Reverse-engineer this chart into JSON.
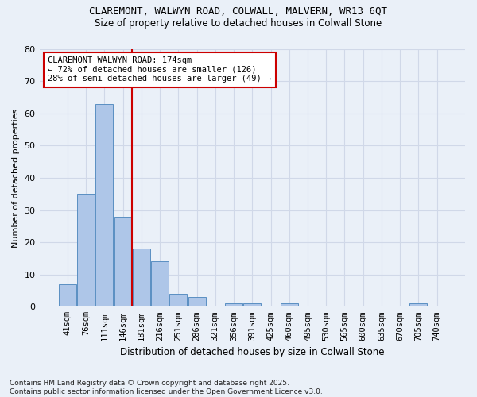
{
  "title_line1": "CLAREMONT, WALWYN ROAD, COLWALL, MALVERN, WR13 6QT",
  "title_line2": "Size of property relative to detached houses in Colwall Stone",
  "xlabel": "Distribution of detached houses by size in Colwall Stone",
  "ylabel": "Number of detached properties",
  "categories": [
    "41sqm",
    "76sqm",
    "111sqm",
    "146sqm",
    "181sqm",
    "216sqm",
    "251sqm",
    "286sqm",
    "321sqm",
    "356sqm",
    "391sqm",
    "425sqm",
    "460sqm",
    "495sqm",
    "530sqm",
    "565sqm",
    "600sqm",
    "635sqm",
    "670sqm",
    "705sqm",
    "740sqm"
  ],
  "values": [
    7,
    35,
    63,
    28,
    18,
    14,
    4,
    3,
    0,
    1,
    1,
    0,
    1,
    0,
    0,
    0,
    0,
    0,
    0,
    1,
    0
  ],
  "bar_color": "#aec6e8",
  "bar_edge_color": "#5a8fc2",
  "grid_color": "#d0d8e8",
  "background_color": "#eaf0f8",
  "vline_color": "#cc0000",
  "vline_x_index": 4,
  "annotation_text": "CLAREMONT WALWYN ROAD: 174sqm\n← 72% of detached houses are smaller (126)\n28% of semi-detached houses are larger (49) →",
  "annotation_box_facecolor": "#ffffff",
  "annotation_box_edgecolor": "#cc0000",
  "footnote": "Contains HM Land Registry data © Crown copyright and database right 2025.\nContains public sector information licensed under the Open Government Licence v3.0.",
  "ylim": [
    0,
    80
  ],
  "yticks": [
    0,
    10,
    20,
    30,
    40,
    50,
    60,
    70,
    80
  ],
  "title1_fontsize": 9,
  "title2_fontsize": 8.5,
  "xlabel_fontsize": 8.5,
  "ylabel_fontsize": 8,
  "tick_fontsize": 7.5,
  "ann_fontsize": 7.5,
  "footnote_fontsize": 6.5
}
